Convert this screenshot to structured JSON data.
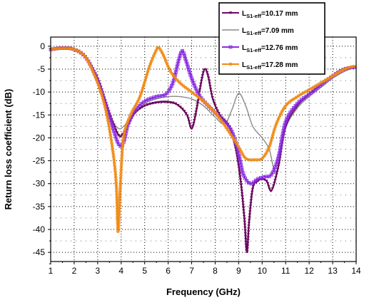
{
  "chart_data": {
    "type": "line",
    "xlabel": "Frequency (GHz)",
    "ylabel": "Return loss coefficient (dB)",
    "xlim": [
      1,
      14
    ],
    "ylim": [
      -47,
      2
    ],
    "xticks": [
      "1",
      "2",
      "3",
      "4",
      "5",
      "6",
      "7",
      "8",
      "9",
      "10",
      "11",
      "12",
      "13",
      "14"
    ],
    "yticks": [
      "0",
      "-5",
      "-10",
      "-15",
      "-20",
      "-25",
      "-30",
      "-35",
      "-40",
      "-45"
    ],
    "grid": true,
    "legend_position": "top-right",
    "series": [
      {
        "name_main": "L",
        "name_sub": "S1-eff",
        "name_rest": "=10.17 mm",
        "color": "#6b0a5e",
        "marker": "triangle-down",
        "x": [
          1,
          1.5,
          2,
          2.5,
          3,
          3.3,
          3.6,
          3.9,
          4.1,
          4.3,
          4.6,
          5,
          5.5,
          6,
          6.4,
          6.8,
          7,
          7.2,
          7.4,
          7.55,
          7.7,
          7.9,
          8.2,
          8.6,
          8.9,
          9.1,
          9.25,
          9.35,
          9.45,
          9.6,
          9.8,
          10,
          10.2,
          10.4,
          10.7,
          11,
          11.5,
          12,
          12.5,
          13,
          13.5,
          14
        ],
        "y": [
          -0.7,
          -0.4,
          -0.7,
          -2.5,
          -7,
          -11.5,
          -16,
          -19.5,
          -19,
          -17,
          -14.5,
          -13,
          -12.3,
          -12.2,
          -12.8,
          -15,
          -18,
          -14,
          -8,
          -5,
          -6.5,
          -11.5,
          -15,
          -17.5,
          -23,
          -30,
          -38,
          -45,
          -38,
          -31,
          -29.5,
          -29,
          -29.5,
          -31.5,
          -26,
          -17.5,
          -13,
          -10.5,
          -8.5,
          -6.5,
          -5,
          -4.5
        ]
      },
      {
        "name_main": "L",
        "name_sub": "S1-eff",
        "name_rest": "=7.09 mm",
        "color": "#8a8a8a",
        "marker": "none",
        "x": [
          1,
          1.5,
          2,
          2.5,
          3,
          3.3,
          3.6,
          3.9,
          4.1,
          4.3,
          4.6,
          5,
          5.5,
          6,
          6.5,
          7,
          7.5,
          8,
          8.4,
          8.7,
          9,
          9.3,
          9.6,
          10,
          10.3,
          10.6,
          11,
          11.5,
          12,
          12.5,
          13,
          13.5,
          14
        ],
        "y": [
          -0.7,
          -0.4,
          -0.7,
          -2.5,
          -7,
          -11.5,
          -16,
          -18,
          -17.5,
          -16.5,
          -14.5,
          -12.5,
          -11.5,
          -11,
          -11,
          -11.5,
          -13,
          -15.5,
          -17,
          -14,
          -10.3,
          -13,
          -17.5,
          -20,
          -22.5,
          -27.5,
          -18,
          -13.5,
          -11,
          -9,
          -7,
          -5.5,
          -4.5
        ]
      },
      {
        "name_main": "L",
        "name_sub": "S1-eff",
        "name_rest": "=12.76 mm",
        "color": "#8a2be2",
        "marker": "square",
        "x": [
          1,
          1.5,
          2,
          2.5,
          3,
          3.3,
          3.6,
          3.9,
          4.1,
          4.3,
          4.6,
          5,
          5.5,
          5.9,
          6.2,
          6.45,
          6.6,
          6.75,
          7,
          7.3,
          7.7,
          8.2,
          8.7,
          9,
          9.2,
          9.5,
          9.8,
          10.1,
          10.4,
          10.7,
          11,
          11.5,
          12,
          12.5,
          13,
          13.5,
          14
        ],
        "y": [
          -0.7,
          -0.4,
          -0.7,
          -2.5,
          -7.5,
          -12,
          -17,
          -21.5,
          -21,
          -17,
          -14,
          -12,
          -11,
          -10.5,
          -8,
          -3,
          -1,
          -3,
          -7,
          -10.5,
          -13,
          -15.5,
          -18.5,
          -23.5,
          -28,
          -30,
          -29,
          -28.5,
          -28,
          -24,
          -16.5,
          -12.5,
          -10.5,
          -8.5,
          -6.5,
          -5,
          -4.5
        ]
      },
      {
        "name_main": "L",
        "name_sub": "S1-eff",
        "name_rest": "=17.28 mm",
        "color": "#f08a14",
        "marker": "circle",
        "x": [
          1,
          1.5,
          2,
          2.5,
          3,
          3.3,
          3.5,
          3.7,
          3.8,
          3.87,
          3.95,
          4.1,
          4.4,
          4.8,
          5.2,
          5.5,
          5.6,
          5.8,
          6.1,
          6.5,
          7,
          7.5,
          8,
          8.5,
          9,
          9.3,
          9.7,
          10,
          10.3,
          10.6,
          11,
          11.5,
          12,
          12.5,
          13,
          13.5,
          14
        ],
        "y": [
          -0.7,
          -0.4,
          -0.7,
          -2.5,
          -8,
          -13,
          -18,
          -25,
          -31,
          -40.5,
          -32,
          -20,
          -15,
          -11,
          -4.5,
          -0.8,
          -0.3,
          -2,
          -5.5,
          -8,
          -10,
          -12,
          -14.5,
          -18,
          -22,
          -24.5,
          -24.8,
          -24.5,
          -22,
          -17,
          -13,
          -11,
          -9.5,
          -8,
          -6.5,
          -5,
          -4.3
        ]
      }
    ]
  }
}
